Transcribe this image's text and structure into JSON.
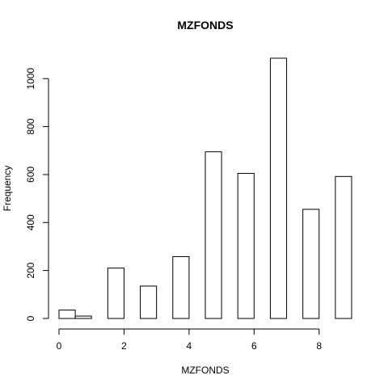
{
  "chart_data": {
    "type": "bar",
    "title": "MZFONDS",
    "xlabel": "MZFONDS",
    "ylabel": "Frequency",
    "bins": [
      {
        "x0": 0.0,
        "x1": 0.5,
        "count": 35
      },
      {
        "x0": 0.5,
        "x1": 1.0,
        "count": 10
      },
      {
        "x0": 1.0,
        "x1": 1.5,
        "count": 0
      },
      {
        "x0": 1.5,
        "x1": 2.0,
        "count": 210
      },
      {
        "x0": 2.0,
        "x1": 2.5,
        "count": 0
      },
      {
        "x0": 2.5,
        "x1": 3.0,
        "count": 135
      },
      {
        "x0": 3.0,
        "x1": 3.5,
        "count": 0
      },
      {
        "x0": 3.5,
        "x1": 4.0,
        "count": 258
      },
      {
        "x0": 4.0,
        "x1": 4.5,
        "count": 0
      },
      {
        "x0": 4.5,
        "x1": 5.0,
        "count": 695
      },
      {
        "x0": 5.0,
        "x1": 5.5,
        "count": 0
      },
      {
        "x0": 5.5,
        "x1": 6.0,
        "count": 605
      },
      {
        "x0": 6.0,
        "x1": 6.5,
        "count": 0
      },
      {
        "x0": 6.5,
        "x1": 7.0,
        "count": 1085
      },
      {
        "x0": 7.0,
        "x1": 7.5,
        "count": 0
      },
      {
        "x0": 7.5,
        "x1": 8.0,
        "count": 455
      },
      {
        "x0": 8.0,
        "x1": 8.5,
        "count": 0
      },
      {
        "x0": 8.5,
        "x1": 9.0,
        "count": 592
      }
    ],
    "xlim": [
      0,
      9
    ],
    "ylim": [
      0,
      1085
    ],
    "x_ticks": [
      0,
      2,
      4,
      6,
      8
    ],
    "y_ticks": [
      0,
      200,
      400,
      600,
      800,
      1000
    ],
    "grid": false
  }
}
